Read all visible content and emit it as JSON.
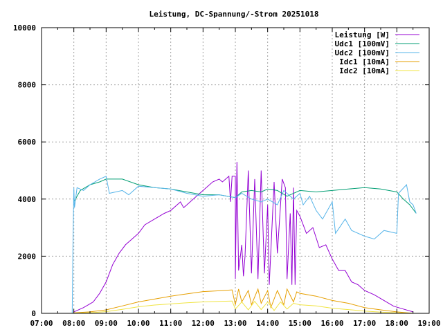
{
  "chart_data": {
    "type": "line",
    "title": "Leistung, DC-Spannung/-Strom 20251018",
    "xlabel": "",
    "ylabel": "",
    "xlim": [
      7,
      19
    ],
    "ylim": [
      0,
      10000
    ],
    "grid": true,
    "legend_position": "top-right",
    "x_ticks": [
      "07:00",
      "08:00",
      "09:00",
      "10:00",
      "11:00",
      "12:00",
      "13:00",
      "14:00",
      "15:00",
      "16:00",
      "17:00",
      "18:00",
      "19:00"
    ],
    "y_ticks": [
      "0",
      "2000",
      "4000",
      "6000",
      "8000",
      "10000"
    ],
    "series": [
      {
        "name": "Leistung [W]",
        "color": "#9400d3",
        "points": [
          [
            8.0,
            50
          ],
          [
            8.3,
            200
          ],
          [
            8.6,
            400
          ],
          [
            8.8,
            700
          ],
          [
            9.0,
            1100
          ],
          [
            9.2,
            1700
          ],
          [
            9.4,
            2100
          ],
          [
            9.6,
            2400
          ],
          [
            9.8,
            2600
          ],
          [
            10.0,
            2800
          ],
          [
            10.2,
            3100
          ],
          [
            10.5,
            3300
          ],
          [
            10.8,
            3500
          ],
          [
            11.0,
            3600
          ],
          [
            11.3,
            3900
          ],
          [
            11.4,
            3700
          ],
          [
            11.5,
            3800
          ],
          [
            11.7,
            4000
          ],
          [
            12.0,
            4300
          ],
          [
            12.3,
            4600
          ],
          [
            12.5,
            4700
          ],
          [
            12.6,
            4600
          ],
          [
            12.8,
            4800
          ],
          [
            12.85,
            3900
          ],
          [
            12.9,
            4800
          ],
          [
            13.0,
            4800
          ],
          [
            13.0,
            1200
          ],
          [
            13.05,
            5300
          ],
          [
            13.1,
            1500
          ],
          [
            13.2,
            2400
          ],
          [
            13.25,
            1300
          ],
          [
            13.3,
            2000
          ],
          [
            13.4,
            5000
          ],
          [
            13.5,
            1400
          ],
          [
            13.6,
            4700
          ],
          [
            13.7,
            1200
          ],
          [
            13.8,
            5000
          ],
          [
            13.9,
            1400
          ],
          [
            14.0,
            3800
          ],
          [
            14.05,
            1000
          ],
          [
            14.2,
            4600
          ],
          [
            14.3,
            2100
          ],
          [
            14.45,
            4700
          ],
          [
            14.55,
            4400
          ],
          [
            14.6,
            1200
          ],
          [
            14.7,
            3500
          ],
          [
            14.75,
            1000
          ],
          [
            14.8,
            4400
          ],
          [
            14.85,
            1000
          ],
          [
            14.9,
            3600
          ],
          [
            15.0,
            3400
          ],
          [
            15.2,
            2800
          ],
          [
            15.4,
            3000
          ],
          [
            15.6,
            2300
          ],
          [
            15.8,
            2400
          ],
          [
            16.0,
            1900
          ],
          [
            16.2,
            1500
          ],
          [
            16.4,
            1500
          ],
          [
            16.6,
            1100
          ],
          [
            16.8,
            1000
          ],
          [
            17.0,
            800
          ],
          [
            17.3,
            650
          ],
          [
            17.6,
            450
          ],
          [
            17.9,
            250
          ],
          [
            18.2,
            150
          ],
          [
            18.5,
            50
          ]
        ]
      },
      {
        "name": "Udc1 [100mV]",
        "color": "#009e73",
        "points": [
          [
            8.0,
            3900
          ],
          [
            8.2,
            4300
          ],
          [
            8.5,
            4500
          ],
          [
            8.8,
            4600
          ],
          [
            9.0,
            4700
          ],
          [
            9.5,
            4700
          ],
          [
            10.0,
            4500
          ],
          [
            10.5,
            4400
          ],
          [
            11.0,
            4350
          ],
          [
            11.5,
            4250
          ],
          [
            12.0,
            4150
          ],
          [
            12.5,
            4150
          ],
          [
            13.0,
            4050
          ],
          [
            13.2,
            4250
          ],
          [
            13.5,
            4300
          ],
          [
            13.8,
            4250
          ],
          [
            14.0,
            4350
          ],
          [
            14.3,
            4300
          ],
          [
            14.6,
            4100
          ],
          [
            15.0,
            4300
          ],
          [
            15.5,
            4250
          ],
          [
            16.0,
            4300
          ],
          [
            16.5,
            4350
          ],
          [
            17.0,
            4400
          ],
          [
            17.5,
            4350
          ],
          [
            18.0,
            4250
          ],
          [
            18.2,
            4000
          ],
          [
            18.4,
            3800
          ],
          [
            18.6,
            3500
          ]
        ]
      },
      {
        "name": "Udc2 [100mV]",
        "color": "#56b4e9",
        "points": [
          [
            7.95,
            0
          ],
          [
            7.97,
            2200
          ],
          [
            8.0,
            4400
          ],
          [
            8.02,
            3700
          ],
          [
            8.1,
            4400
          ],
          [
            8.3,
            4300
          ],
          [
            8.5,
            4500
          ],
          [
            8.8,
            4700
          ],
          [
            9.0,
            4800
          ],
          [
            9.1,
            4200
          ],
          [
            9.5,
            4300
          ],
          [
            9.7,
            4150
          ],
          [
            10.0,
            4450
          ],
          [
            10.5,
            4400
          ],
          [
            11.0,
            4350
          ],
          [
            11.5,
            4200
          ],
          [
            12.0,
            4100
          ],
          [
            12.5,
            4150
          ],
          [
            13.0,
            4050
          ],
          [
            13.2,
            4200
          ],
          [
            13.5,
            4000
          ],
          [
            13.8,
            3900
          ],
          [
            14.0,
            4000
          ],
          [
            14.3,
            3800
          ],
          [
            14.5,
            4300
          ],
          [
            14.8,
            4000
          ],
          [
            15.0,
            4200
          ],
          [
            15.1,
            3800
          ],
          [
            15.3,
            4100
          ],
          [
            15.5,
            3600
          ],
          [
            15.7,
            3300
          ],
          [
            16.0,
            3900
          ],
          [
            16.1,
            2800
          ],
          [
            16.4,
            3300
          ],
          [
            16.6,
            2900
          ],
          [
            17.0,
            2700
          ],
          [
            17.3,
            2600
          ],
          [
            17.6,
            2900
          ],
          [
            18.0,
            2800
          ],
          [
            18.05,
            4200
          ],
          [
            18.3,
            4500
          ],
          [
            18.4,
            3900
          ],
          [
            18.5,
            3800
          ],
          [
            18.6,
            3500
          ]
        ]
      },
      {
        "name": "Idc1 [10mA]",
        "color": "#e69f00",
        "points": [
          [
            8.0,
            20
          ],
          [
            8.5,
            50
          ],
          [
            9.0,
            120
          ],
          [
            9.5,
            260
          ],
          [
            10.0,
            400
          ],
          [
            10.5,
            500
          ],
          [
            11.0,
            600
          ],
          [
            11.5,
            680
          ],
          [
            12.0,
            760
          ],
          [
            12.5,
            790
          ],
          [
            12.9,
            820
          ],
          [
            13.0,
            300
          ],
          [
            13.1,
            850
          ],
          [
            13.2,
            400
          ],
          [
            13.4,
            800
          ],
          [
            13.5,
            300
          ],
          [
            13.7,
            850
          ],
          [
            13.8,
            350
          ],
          [
            14.0,
            800
          ],
          [
            14.1,
            200
          ],
          [
            14.3,
            800
          ],
          [
            14.5,
            300
          ],
          [
            14.6,
            850
          ],
          [
            14.8,
            400
          ],
          [
            14.9,
            750
          ],
          [
            15.0,
            700
          ],
          [
            15.5,
            600
          ],
          [
            16.0,
            450
          ],
          [
            16.5,
            350
          ],
          [
            17.0,
            200
          ],
          [
            17.5,
            120
          ],
          [
            18.0,
            50
          ],
          [
            18.5,
            0
          ]
        ]
      },
      {
        "name": "Idc2 [10mA]",
        "color": "#f0e442",
        "points": [
          [
            8.0,
            10
          ],
          [
            8.5,
            20
          ],
          [
            9.0,
            60
          ],
          [
            9.5,
            140
          ],
          [
            10.0,
            230
          ],
          [
            10.5,
            290
          ],
          [
            11.0,
            330
          ],
          [
            11.5,
            370
          ],
          [
            12.0,
            400
          ],
          [
            12.5,
            420
          ],
          [
            12.9,
            430
          ],
          [
            13.0,
            150
          ],
          [
            13.2,
            400
          ],
          [
            13.4,
            120
          ],
          [
            13.6,
            420
          ],
          [
            13.8,
            130
          ],
          [
            14.0,
            400
          ],
          [
            14.2,
            100
          ],
          [
            14.4,
            400
          ],
          [
            14.6,
            150
          ],
          [
            14.8,
            350
          ],
          [
            15.0,
            300
          ],
          [
            15.5,
            260
          ],
          [
            16.0,
            180
          ],
          [
            16.5,
            130
          ],
          [
            17.0,
            80
          ],
          [
            17.5,
            40
          ],
          [
            18.0,
            20
          ],
          [
            18.5,
            0
          ]
        ]
      }
    ]
  }
}
